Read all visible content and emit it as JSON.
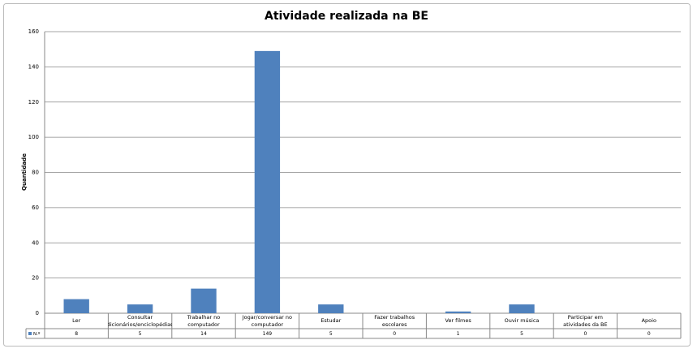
{
  "chart_data": {
    "type": "bar",
    "title": "Atividade realizada na BE",
    "y_label": "Quantidade",
    "categories": [
      "Ler",
      "Consultar dicionários/enciclopédias",
      "Trabalhar no computador",
      "Jogar/conversar no computador",
      "Estudar",
      "Fazer trabalhos escolares",
      "Ver filmes",
      "Ouvir música",
      "Participar em atividades da BE",
      "Apoio"
    ],
    "series": [
      {
        "name": "N.º",
        "color": "#4f81bd",
        "values": [
          8,
          5,
          14,
          149,
          5,
          0,
          1,
          5,
          0,
          0
        ]
      }
    ],
    "ylim": [
      0,
      160
    ],
    "yticks": [
      0,
      20,
      40,
      60,
      80,
      100,
      120,
      140,
      160
    ],
    "grid": true
  }
}
